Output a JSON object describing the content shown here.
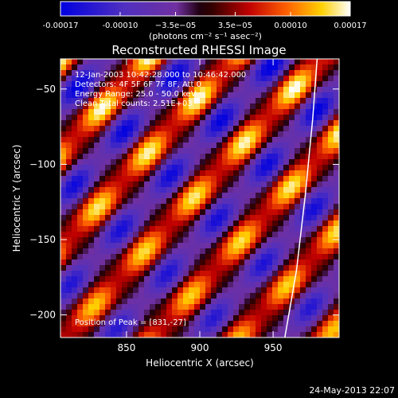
{
  "colorbar": {
    "ticks": [
      "-0.00017",
      "-0.00010",
      "−3.5e−05",
      "3.5e−05",
      "0.00010",
      "0.00017"
    ],
    "tick_values": [
      -0.00017,
      -0.0001,
      -3.5e-05,
      3.5e-05,
      0.0001,
      0.00017
    ],
    "range": [
      -0.00017,
      0.00017
    ],
    "unit_label": "(photons cm⁻² s⁻¹ asec⁻²)"
  },
  "chart_data": {
    "type": "heatmap",
    "title": "Reconstructed RHESSI Image",
    "xlabel": "Heliocentric X (arcsec)",
    "ylabel": "Heliocentric Y (arcsec)",
    "xlim": [
      805,
      995
    ],
    "ylim": [
      -215,
      -30
    ],
    "x_ticks": [
      850,
      900,
      950
    ],
    "y_ticks": [
      -50,
      -100,
      -150,
      -200
    ],
    "color_range": [
      -0.00017,
      0.00017
    ],
    "annotations": [
      "12-Jan-2003 10:42:28.000 to 10:46:42.000",
      "Detectors: 4F 5F 6F 7F 8F, Att 0",
      "Energy Range: 25.0 - 50.0 keV",
      "Clean    Total counts: 2.51E+03"
    ],
    "peak_label": "Position of Peak = [831,-27]",
    "peak_position": [
      831,
      -27
    ],
    "limb": [
      [
        958,
        -215
      ],
      [
        966,
        -170
      ],
      [
        972,
        -120
      ],
      [
        977,
        -70
      ],
      [
        980,
        -30
      ]
    ]
  },
  "footer": {
    "date": "24-May-2013 22:07"
  },
  "colors": {
    "background": "#000000",
    "limb": "#ffffff",
    "text": "#ffffff"
  }
}
